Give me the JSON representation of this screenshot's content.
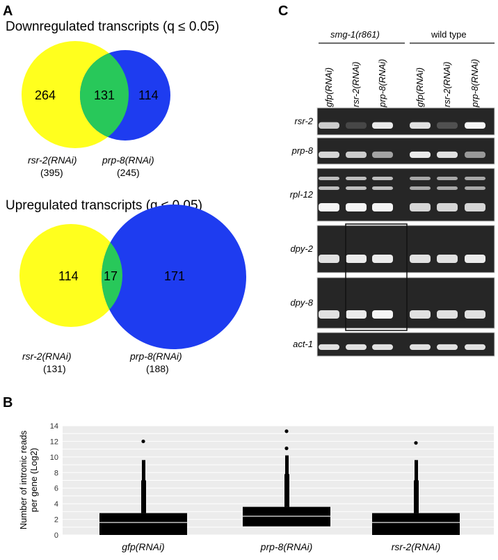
{
  "panel_a": {
    "letter": "A",
    "down": {
      "title": "Downregulated transcripts (q ≤ 0.05)",
      "left_only": "264",
      "overlap": "131",
      "right_only": "114",
      "left_label": "rsr-2(RNAi)",
      "left_total": "(395)",
      "right_label": "prp-8(RNAi)",
      "right_total": "(245)"
    },
    "up": {
      "title": "Upregulated transcripts (q ≤ 0.05)",
      "left_only": "114",
      "overlap": "17",
      "right_only": "171",
      "left_label": "rsr-2(RNAi)",
      "left_total": "(131)",
      "right_label": "prp-8(RNAi)",
      "right_total": "(188)"
    },
    "colors": {
      "left": "#ffff1e",
      "right": "#1e3cf0",
      "overlap": "#28c85a"
    }
  },
  "panel_b": {
    "letter": "B",
    "chart_data": {
      "type": "box",
      "ylabel": "Number of intronic reads per gene (Log2)",
      "ylim": [
        0,
        14
      ],
      "yticks": [
        0,
        2,
        4,
        6,
        8,
        10,
        12,
        14
      ],
      "grid": true,
      "categories": [
        "gfp(RNAi)",
        "prp-8(RNAi)",
        "rsr-2(RNAi)"
      ],
      "boxes": [
        {
          "name": "gfp(RNAi)",
          "q1": 0,
          "median": 1.6,
          "q3": 2.8,
          "whisker_high": 7,
          "outlier_max": 9.6,
          "outliers": [
            12
          ]
        },
        {
          "name": "prp-8(RNAi)",
          "q1": 1.1,
          "median": 2.4,
          "q3": 3.6,
          "whisker_high": 7.8,
          "outlier_max": 10.2,
          "outliers": [
            11.1,
            13.3
          ]
        },
        {
          "name": "rsr-2(RNAi)",
          "q1": 0,
          "median": 1.6,
          "q3": 2.8,
          "whisker_high": 7,
          "outlier_max": 9.6,
          "outliers": [
            11.8
          ]
        }
      ]
    }
  },
  "panel_c": {
    "letter": "C",
    "groups": [
      "smg-1(r861)",
      "wild type"
    ],
    "lanes": [
      "gfp(RNAi)",
      "rsr-2(RNAi)",
      "prp-8(RNAi)",
      "gfp(RNAi)",
      "rsr-2(RNAi)",
      "prp-8(RNAi)"
    ],
    "rows": [
      {
        "name": "rsr-2",
        "bands": [
          0.8,
          0.15,
          0.95,
          0.9,
          0.2,
          1.0
        ]
      },
      {
        "name": "prp-8",
        "bands": [
          0.85,
          0.8,
          0.6,
          0.95,
          0.9,
          0.55
        ]
      },
      {
        "name": "rpl-12",
        "bands": [
          1.0,
          1.0,
          1.0,
          0.85,
          0.85,
          0.85
        ]
      },
      {
        "name": "dpy-2",
        "bands": [
          0.9,
          0.95,
          0.95,
          0.9,
          0.9,
          0.95
        ]
      },
      {
        "name": "dpy-8",
        "bands": [
          0.9,
          0.95,
          1.0,
          0.9,
          0.9,
          0.9
        ]
      },
      {
        "name": "act-1",
        "bands": [
          0.9,
          0.9,
          0.9,
          0.9,
          0.9,
          0.9
        ]
      }
    ]
  }
}
